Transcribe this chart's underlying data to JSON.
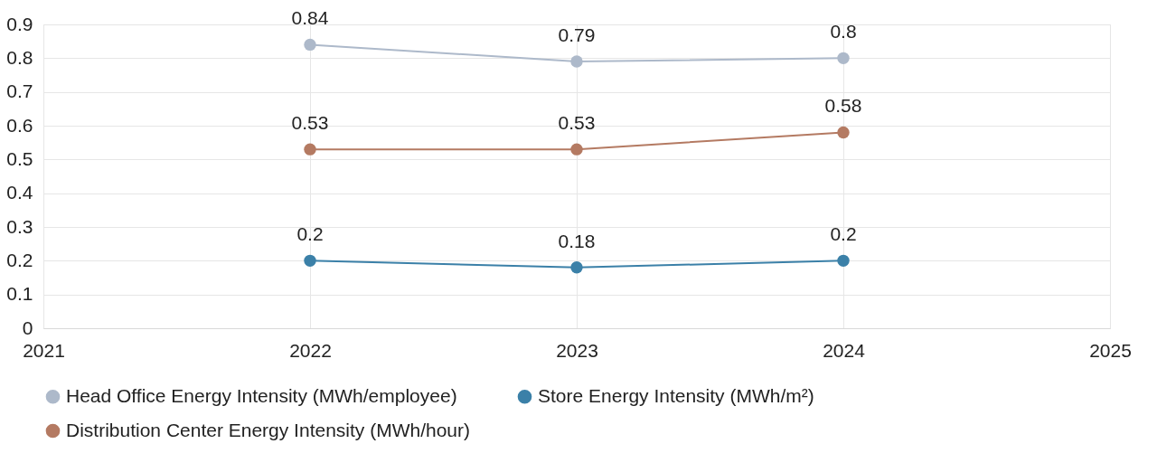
{
  "chart_data": {
    "type": "line",
    "x": [
      2022,
      2023,
      2024
    ],
    "xlim": [
      2021,
      2025
    ],
    "xticks": [
      2021,
      2022,
      2023,
      2024,
      2025
    ],
    "ylim": [
      0,
      0.9
    ],
    "yticks": [
      0,
      0.1,
      0.2,
      0.3,
      0.4,
      0.5,
      0.6,
      0.7,
      0.8,
      0.9
    ],
    "series": [
      {
        "name": "Head Office Energy Intensity (MWh/employee)",
        "color": "#adb9ca",
        "values": [
          0.84,
          0.79,
          0.8
        ]
      },
      {
        "name": "Store Energy Intensity (MWh/m²)",
        "color": "#3b80a8",
        "values": [
          0.2,
          0.18,
          0.2
        ]
      },
      {
        "name": "Distribution Center Energy Intensity (MWh/hour)",
        "color": "#b47a62",
        "values": [
          0.53,
          0.53,
          0.58
        ]
      }
    ],
    "data_labels": true,
    "grid": true,
    "legend": "bottom",
    "marker": "circle",
    "line_style": "solid"
  }
}
